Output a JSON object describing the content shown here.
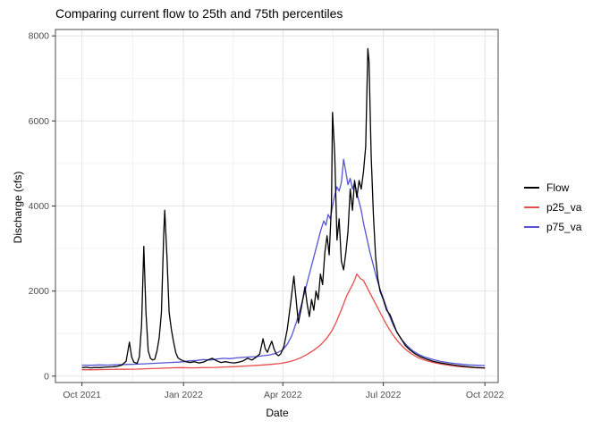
{
  "chart_data": {
    "type": "line",
    "title": "Comparing current flow to 25th and 75th percentiles",
    "xlabel": "Date",
    "ylabel": "Discharge (cfs)",
    "x_unit": "days since 2021-10-01",
    "xlim": [
      0,
      365
    ],
    "ylim": [
      0,
      8000
    ],
    "grid": "major and minor, light gray on white panel",
    "legend_position": "right",
    "x_ticks": [
      {
        "day": 0,
        "label": "Oct 2021"
      },
      {
        "day": 92,
        "label": "Jan 2022"
      },
      {
        "day": 182,
        "label": "Apr 2022"
      },
      {
        "day": 273,
        "label": "Jul 2022"
      },
      {
        "day": 365,
        "label": "Oct 2022"
      }
    ],
    "y_ticks": [
      0,
      2000,
      4000,
      6000,
      8000
    ],
    "series": [
      {
        "name": "Flow",
        "color": "#000000",
        "points": [
          [
            0,
            200
          ],
          [
            4,
            210
          ],
          [
            8,
            195
          ],
          [
            12,
            205
          ],
          [
            16,
            200
          ],
          [
            20,
            210
          ],
          [
            24,
            215
          ],
          [
            28,
            220
          ],
          [
            32,
            230
          ],
          [
            36,
            260
          ],
          [
            40,
            350
          ],
          [
            43,
            800
          ],
          [
            45,
            450
          ],
          [
            47,
            330
          ],
          [
            50,
            300
          ],
          [
            52,
            450
          ],
          [
            54,
            1200
          ],
          [
            56,
            3050
          ],
          [
            58,
            1500
          ],
          [
            60,
            600
          ],
          [
            62,
            420
          ],
          [
            64,
            380
          ],
          [
            66,
            400
          ],
          [
            68,
            600
          ],
          [
            70,
            900
          ],
          [
            72,
            1500
          ],
          [
            74,
            3300
          ],
          [
            75,
            3900
          ],
          [
            77,
            2800
          ],
          [
            79,
            1500
          ],
          [
            81,
            1100
          ],
          [
            83,
            800
          ],
          [
            85,
            550
          ],
          [
            87,
            430
          ],
          [
            90,
            380
          ],
          [
            94,
            340
          ],
          [
            98,
            320
          ],
          [
            102,
            340
          ],
          [
            106,
            310
          ],
          [
            110,
            330
          ],
          [
            114,
            380
          ],
          [
            118,
            420
          ],
          [
            122,
            360
          ],
          [
            126,
            320
          ],
          [
            130,
            340
          ],
          [
            134,
            320
          ],
          [
            138,
            310
          ],
          [
            142,
            330
          ],
          [
            146,
            360
          ],
          [
            150,
            420
          ],
          [
            154,
            380
          ],
          [
            158,
            450
          ],
          [
            161,
            520
          ],
          [
            164,
            880
          ],
          [
            166,
            650
          ],
          [
            168,
            560
          ],
          [
            170,
            700
          ],
          [
            172,
            820
          ],
          [
            174,
            640
          ],
          [
            176,
            520
          ],
          [
            178,
            480
          ],
          [
            180,
            520
          ],
          [
            183,
            700
          ],
          [
            186,
            1100
          ],
          [
            189,
            1700
          ],
          [
            192,
            2350
          ],
          [
            194,
            1800
          ],
          [
            196,
            1250
          ],
          [
            199,
            1650
          ],
          [
            202,
            2100
          ],
          [
            204,
            1700
          ],
          [
            206,
            1400
          ],
          [
            208,
            1800
          ],
          [
            210,
            1550
          ],
          [
            212,
            2000
          ],
          [
            214,
            1800
          ],
          [
            216,
            2400
          ],
          [
            218,
            2150
          ],
          [
            220,
            2900
          ],
          [
            222,
            3300
          ],
          [
            224,
            2850
          ],
          [
            226,
            4000
          ],
          [
            227,
            6200
          ],
          [
            229,
            5200
          ],
          [
            231,
            3200
          ],
          [
            233,
            3700
          ],
          [
            235,
            2700
          ],
          [
            237,
            2500
          ],
          [
            239,
            2900
          ],
          [
            241,
            3400
          ],
          [
            243,
            4400
          ],
          [
            245,
            3900
          ],
          [
            247,
            4600
          ],
          [
            249,
            4200
          ],
          [
            251,
            4600
          ],
          [
            253,
            4400
          ],
          [
            255,
            4800
          ],
          [
            257,
            5400
          ],
          [
            259,
            7700
          ],
          [
            260,
            7400
          ],
          [
            262,
            5200
          ],
          [
            264,
            3800
          ],
          [
            266,
            2800
          ],
          [
            268,
            2300
          ],
          [
            270,
            2000
          ],
          [
            273,
            1800
          ],
          [
            276,
            1550
          ],
          [
            279,
            1450
          ],
          [
            282,
            1250
          ],
          [
            285,
            1050
          ],
          [
            289,
            880
          ],
          [
            293,
            720
          ],
          [
            297,
            620
          ],
          [
            302,
            520
          ],
          [
            307,
            450
          ],
          [
            312,
            400
          ],
          [
            318,
            350
          ],
          [
            325,
            310
          ],
          [
            332,
            280
          ],
          [
            340,
            250
          ],
          [
            348,
            225
          ],
          [
            356,
            205
          ],
          [
            365,
            195
          ]
        ]
      },
      {
        "name": "p25_va",
        "color": "#e84c4c",
        "points": [
          [
            0,
            150
          ],
          [
            10,
            150
          ],
          [
            20,
            155
          ],
          [
            30,
            160
          ],
          [
            40,
            160
          ],
          [
            50,
            165
          ],
          [
            60,
            175
          ],
          [
            70,
            185
          ],
          [
            80,
            195
          ],
          [
            90,
            200
          ],
          [
            100,
            195
          ],
          [
            110,
            200
          ],
          [
            120,
            205
          ],
          [
            130,
            215
          ],
          [
            140,
            225
          ],
          [
            150,
            240
          ],
          [
            160,
            255
          ],
          [
            170,
            275
          ],
          [
            180,
            300
          ],
          [
            186,
            330
          ],
          [
            192,
            370
          ],
          [
            198,
            430
          ],
          [
            204,
            510
          ],
          [
            210,
            610
          ],
          [
            216,
            730
          ],
          [
            222,
            900
          ],
          [
            226,
            1050
          ],
          [
            230,
            1250
          ],
          [
            234,
            1500
          ],
          [
            237,
            1700
          ],
          [
            240,
            1900
          ],
          [
            243,
            2050
          ],
          [
            246,
            2200
          ],
          [
            249,
            2400
          ],
          [
            252,
            2300
          ],
          [
            255,
            2250
          ],
          [
            258,
            2100
          ],
          [
            261,
            1950
          ],
          [
            264,
            1800
          ],
          [
            267,
            1650
          ],
          [
            270,
            1500
          ],
          [
            274,
            1300
          ],
          [
            278,
            1120
          ],
          [
            282,
            960
          ],
          [
            286,
            820
          ],
          [
            290,
            710
          ],
          [
            295,
            590
          ],
          [
            300,
            500
          ],
          [
            305,
            430
          ],
          [
            310,
            380
          ],
          [
            318,
            320
          ],
          [
            326,
            280
          ],
          [
            334,
            250
          ],
          [
            342,
            225
          ],
          [
            350,
            210
          ],
          [
            358,
            195
          ],
          [
            365,
            190
          ]
        ]
      },
      {
        "name": "p75_va",
        "color": "#5555d6",
        "points": [
          [
            0,
            260
          ],
          [
            8,
            255
          ],
          [
            16,
            265
          ],
          [
            24,
            260
          ],
          [
            32,
            270
          ],
          [
            40,
            275
          ],
          [
            48,
            280
          ],
          [
            56,
            290
          ],
          [
            64,
            300
          ],
          [
            72,
            310
          ],
          [
            80,
            320
          ],
          [
            88,
            330
          ],
          [
            92,
            340
          ],
          [
            98,
            360
          ],
          [
            104,
            370
          ],
          [
            110,
            390
          ],
          [
            116,
            380
          ],
          [
            122,
            400
          ],
          [
            128,
            420
          ],
          [
            134,
            410
          ],
          [
            140,
            430
          ],
          [
            146,
            440
          ],
          [
            152,
            450
          ],
          [
            158,
            460
          ],
          [
            164,
            480
          ],
          [
            170,
            500
          ],
          [
            176,
            540
          ],
          [
            182,
            620
          ],
          [
            186,
            750
          ],
          [
            190,
            950
          ],
          [
            194,
            1250
          ],
          [
            198,
            1600
          ],
          [
            202,
            2000
          ],
          [
            206,
            2400
          ],
          [
            210,
            2800
          ],
          [
            213,
            3100
          ],
          [
            216,
            3400
          ],
          [
            219,
            3650
          ],
          [
            221,
            3550
          ],
          [
            223,
            3800
          ],
          [
            225,
            3700
          ],
          [
            227,
            4000
          ],
          [
            229,
            4250
          ],
          [
            231,
            4450
          ],
          [
            233,
            4350
          ],
          [
            235,
            4550
          ],
          [
            237,
            5100
          ],
          [
            239,
            4800
          ],
          [
            241,
            4500
          ],
          [
            243,
            4650
          ],
          [
            245,
            4400
          ],
          [
            247,
            4550
          ],
          [
            249,
            4300
          ],
          [
            251,
            4100
          ],
          [
            253,
            3900
          ],
          [
            255,
            3600
          ],
          [
            258,
            3250
          ],
          [
            261,
            2900
          ],
          [
            264,
            2600
          ],
          [
            267,
            2300
          ],
          [
            270,
            2050
          ],
          [
            274,
            1750
          ],
          [
            278,
            1450
          ],
          [
            282,
            1200
          ],
          [
            286,
            1000
          ],
          [
            290,
            850
          ],
          [
            295,
            700
          ],
          [
            300,
            590
          ],
          [
            305,
            510
          ],
          [
            310,
            450
          ],
          [
            318,
            390
          ],
          [
            326,
            340
          ],
          [
            334,
            310
          ],
          [
            342,
            285
          ],
          [
            350,
            265
          ],
          [
            358,
            255
          ],
          [
            365,
            250
          ]
        ]
      }
    ],
    "style": {
      "panel_background": "#ffffff",
      "panel_border": "#4d4d4d",
      "grid_major": "#e4e4e4",
      "grid_minor": "#f2f2f2",
      "tick_mark": "#333333",
      "tick_text": "#4d4d4d"
    }
  }
}
